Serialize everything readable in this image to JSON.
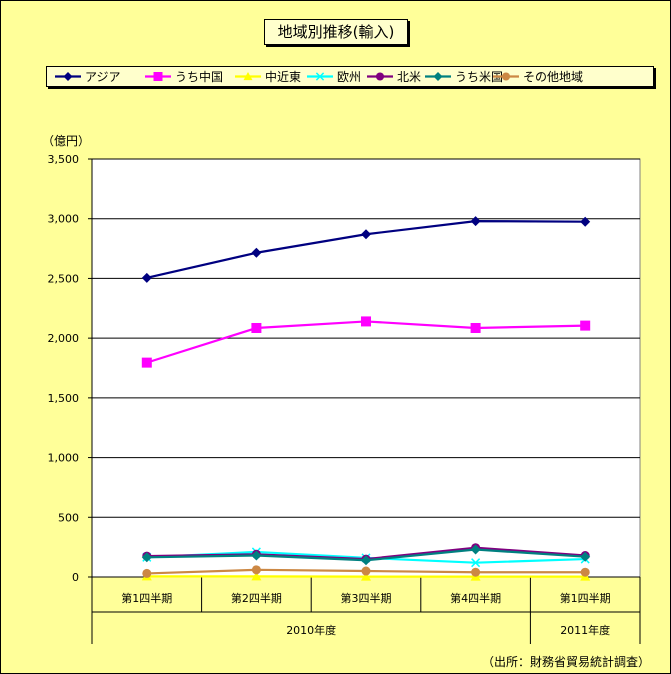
{
  "chart_data": {
    "type": "line",
    "title": "地域別推移(輸入)",
    "ylabel": "（億円）",
    "ylim": [
      0,
      3500
    ],
    "yticks": [
      0,
      500,
      1000,
      1500,
      2000,
      2500,
      3000,
      3500
    ],
    "ytick_labels": [
      "0",
      "500",
      "1,000",
      "1,500",
      "2,000",
      "2,500",
      "3,000",
      "3,500"
    ],
    "categories": [
      "第1四半期",
      "第2四半期",
      "第3四半期",
      "第4四半期",
      "第1四半期"
    ],
    "year_groups": [
      {
        "label": "2010年度",
        "span": 4
      },
      {
        "label": "2011年度",
        "span": 1
      }
    ],
    "grid": true,
    "legend_position": "top",
    "series": [
      {
        "name": "アジア",
        "color": "#000080",
        "marker": "diamond",
        "values": [
          2505,
          2715,
          2870,
          2980,
          2975
        ]
      },
      {
        "name": "うち中国",
        "color": "#ff00ff",
        "marker": "square",
        "values": [
          1795,
          2085,
          2140,
          2085,
          2105
        ]
      },
      {
        "name": "中近東",
        "color": "#ffff00",
        "marker": "triangle",
        "values": [
          5,
          5,
          3,
          3,
          3
        ]
      },
      {
        "name": "欧州",
        "color": "#00ffff",
        "marker": "x",
        "values": [
          165,
          210,
          160,
          120,
          150
        ]
      },
      {
        "name": "北米",
        "color": "#800080",
        "marker": "circle",
        "values": [
          175,
          190,
          150,
          245,
          180
        ]
      },
      {
        "name": "うち米国",
        "color": "#008080",
        "marker": "diamond",
        "values": [
          165,
          180,
          140,
          230,
          170
        ]
      },
      {
        "name": "その他地域",
        "color": "#cc8844",
        "marker": "circle",
        "values": [
          30,
          60,
          50,
          40,
          40
        ]
      }
    ],
    "source_note": "（出所：財務省貿易統計調査）"
  }
}
